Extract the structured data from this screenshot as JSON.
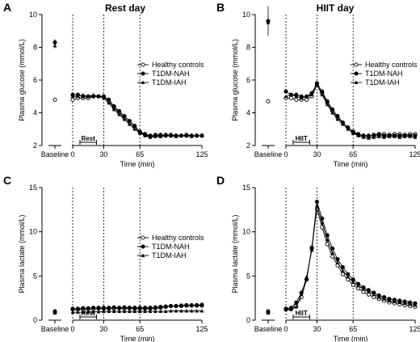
{
  "chart_data": [
    {
      "letter": "A",
      "title": "Rest day",
      "type": "line",
      "ylabel": "Plasma glucose (mmol/L)",
      "xlabel": "Time (min)",
      "ylim": [
        2,
        10
      ],
      "yticks": [
        2,
        4,
        6,
        8,
        10
      ],
      "xlim": [
        0,
        125
      ],
      "xticks": [
        0,
        30,
        65,
        125
      ],
      "vlines": [
        0,
        30,
        65
      ],
      "baseline_label": "Baseline",
      "activity_box": {
        "label": "Rest",
        "start": 7,
        "end": 23
      },
      "legend": [
        "Healthy controls",
        "T1DM-NAH",
        "T1DM-IAH"
      ],
      "baseline_points": [
        {
          "series": "Healthy controls",
          "y": 4.8
        },
        {
          "series": "T1DM-NAH",
          "y": 8.3,
          "err": 0.2
        },
        {
          "series": "T1DM-IAH",
          "y": 8.1,
          "err": 0.15
        }
      ],
      "x": [
        0,
        5,
        10,
        15,
        20,
        25,
        30,
        35,
        40,
        45,
        50,
        55,
        60,
        65,
        70,
        75,
        80,
        85,
        90,
        95,
        100,
        105,
        110,
        115,
        120,
        125
      ],
      "series": [
        {
          "name": "Healthy controls",
          "values": [
            4.8,
            4.9,
            4.9,
            4.9,
            5.0,
            5.0,
            5.0,
            4.7,
            4.3,
            4.0,
            3.7,
            3.4,
            3.1,
            2.8,
            2.65,
            2.55,
            2.6,
            2.6,
            2.65,
            2.65,
            2.6,
            2.6,
            2.65,
            2.6,
            2.6,
            2.6
          ]
        },
        {
          "name": "T1DM-NAH",
          "values": [
            5.1,
            5.1,
            5.0,
            5.0,
            5.0,
            5.0,
            5.0,
            4.8,
            4.4,
            4.1,
            3.8,
            3.5,
            3.2,
            2.85,
            2.7,
            2.6,
            2.65,
            2.65,
            2.6,
            2.6,
            2.6,
            2.6,
            2.6,
            2.6,
            2.6,
            2.6
          ]
        },
        {
          "name": "T1DM-IAH",
          "values": [
            5.0,
            5.0,
            5.1,
            5.0,
            5.1,
            5.0,
            4.9,
            4.6,
            4.2,
            3.9,
            3.6,
            3.3,
            3.0,
            2.75,
            2.6,
            2.5,
            2.55,
            2.55,
            2.6,
            2.6,
            2.55,
            2.6,
            2.6,
            2.55,
            2.6,
            2.6
          ]
        }
      ]
    },
    {
      "letter": "B",
      "title": "HIIT day",
      "type": "line",
      "ylabel": "Plasma glucose (mmol/L)",
      "xlabel": "Time (min)",
      "ylim": [
        2,
        10
      ],
      "yticks": [
        2,
        4,
        6,
        8,
        10
      ],
      "xlim": [
        0,
        125
      ],
      "xticks": [
        0,
        30,
        65,
        125
      ],
      "vlines": [
        0,
        30,
        65
      ],
      "baseline_label": "Baseline",
      "activity_box": {
        "label": "HIIT",
        "start": 7,
        "end": 23
      },
      "legend": [
        "Healthy controls",
        "T1DM-NAH",
        "T1DM-IAH"
      ],
      "baseline_points": [
        {
          "series": "Healthy controls",
          "y": 4.7
        },
        {
          "series": "T1DM-NAH",
          "y": 9.6,
          "err": 0.9
        },
        {
          "series": "T1DM-IAH",
          "y": 9.5,
          "err": 0.1
        }
      ],
      "x": [
        0,
        5,
        10,
        15,
        20,
        25,
        30,
        35,
        40,
        45,
        50,
        55,
        60,
        65,
        70,
        75,
        80,
        85,
        90,
        95,
        100,
        105,
        110,
        115,
        120,
        125
      ],
      "series": [
        {
          "name": "Healthy controls",
          "values": [
            4.9,
            4.9,
            4.8,
            4.8,
            4.8,
            5.0,
            5.7,
            5.2,
            4.6,
            4.1,
            3.7,
            3.4,
            3.1,
            2.8,
            2.65,
            2.6,
            2.55,
            2.65,
            2.7,
            2.7,
            2.65,
            2.7,
            2.7,
            2.65,
            2.7,
            2.7
          ]
        },
        {
          "name": "T1DM-NAH",
          "values": [
            5.3,
            5.1,
            5.1,
            5.0,
            5.0,
            5.2,
            5.8,
            5.3,
            4.7,
            4.2,
            3.8,
            3.4,
            3.1,
            2.85,
            2.7,
            2.6,
            2.6,
            2.6,
            2.65,
            2.6,
            2.6,
            2.6,
            2.6,
            2.6,
            2.6,
            2.6
          ]
        },
        {
          "name": "T1DM-IAH",
          "values": [
            5.0,
            5.1,
            5.0,
            4.9,
            5.0,
            5.1,
            5.7,
            5.1,
            4.5,
            4.0,
            3.6,
            3.3,
            3.0,
            2.75,
            2.6,
            2.5,
            2.45,
            2.5,
            2.55,
            2.5,
            2.55,
            2.55,
            2.5,
            2.55,
            2.55,
            2.5
          ]
        }
      ]
    },
    {
      "letter": "C",
      "title": "",
      "type": "line",
      "ylabel": "Plasma lactate (mmol/L)",
      "xlabel": "Time (min)",
      "ylim": [
        0,
        15
      ],
      "yticks": [
        0,
        5,
        10,
        15
      ],
      "xlim": [
        0,
        125
      ],
      "xticks": [
        0,
        30,
        65,
        125
      ],
      "vlines": [
        0,
        30,
        65
      ],
      "baseline_label": "Baseline",
      "activity_box": {
        "label": "Rest",
        "start": 7,
        "end": 23
      },
      "legend": [
        "Healthy controls",
        "T1DM-NAH",
        "T1DM-IAH"
      ],
      "baseline_points": [
        {
          "series": "Healthy controls",
          "y": 0.9
        },
        {
          "series": "T1DM-NAH",
          "y": 1.0
        },
        {
          "series": "T1DM-IAH",
          "y": 0.8
        }
      ],
      "x": [
        0,
        5,
        10,
        15,
        20,
        25,
        30,
        35,
        40,
        45,
        50,
        55,
        60,
        65,
        70,
        75,
        80,
        85,
        90,
        95,
        100,
        105,
        110,
        115,
        120,
        125
      ],
      "series": [
        {
          "name": "Healthy controls",
          "values": [
            1.2,
            1.2,
            1.2,
            1.25,
            1.25,
            1.3,
            1.3,
            1.3,
            1.3,
            1.35,
            1.3,
            1.35,
            1.3,
            1.3,
            1.3,
            1.3,
            1.35,
            1.4,
            1.5,
            1.6,
            1.6,
            1.65,
            1.7,
            1.7,
            1.7,
            1.75
          ]
        },
        {
          "name": "T1DM-NAH",
          "values": [
            1.3,
            1.3,
            1.35,
            1.35,
            1.4,
            1.4,
            1.4,
            1.4,
            1.45,
            1.4,
            1.45,
            1.4,
            1.4,
            1.4,
            1.4,
            1.4,
            1.45,
            1.5,
            1.55,
            1.6,
            1.6,
            1.6,
            1.65,
            1.65,
            1.65,
            1.65
          ]
        },
        {
          "name": "T1DM-IAH",
          "values": [
            0.9,
            0.9,
            0.9,
            0.95,
            0.95,
            0.95,
            1.0,
            1.0,
            1.0,
            1.0,
            1.0,
            1.0,
            1.0,
            1.0,
            1.0,
            1.0,
            1.0,
            1.0,
            1.0,
            1.05,
            1.05,
            1.05,
            1.05,
            1.05,
            1.05,
            1.05
          ]
        }
      ]
    },
    {
      "letter": "D",
      "title": "",
      "type": "line",
      "ylabel": "Plasma lactate (mmol/L)",
      "xlabel": "Time (min)",
      "ylim": [
        0,
        15
      ],
      "yticks": [
        0,
        5,
        10,
        15
      ],
      "xlim": [
        0,
        125
      ],
      "xticks": [
        0,
        30,
        65,
        125
      ],
      "vlines": [
        0,
        30,
        65
      ],
      "baseline_label": "Baseline",
      "activity_box": {
        "label": "HIIT",
        "start": 7,
        "end": 23
      },
      "legend": [],
      "baseline_points": [
        {
          "series": "Healthy controls",
          "y": 1.0
        },
        {
          "series": "T1DM-NAH",
          "y": 0.9
        },
        {
          "series": "T1DM-IAH",
          "y": 0.8
        }
      ],
      "x": [
        0,
        5,
        10,
        15,
        20,
        25,
        30,
        35,
        40,
        45,
        50,
        55,
        60,
        65,
        70,
        75,
        80,
        85,
        90,
        95,
        100,
        105,
        110,
        115,
        120,
        125
      ],
      "series": [
        {
          "name": "Healthy controls",
          "values": [
            1.2,
            1.3,
            1.6,
            2.6,
            4.6,
            8.2,
            12.6,
            10.5,
            8.6,
            7.2,
            6.2,
            5.2,
            4.6,
            4.0,
            3.6,
            3.2,
            2.9,
            2.6,
            2.4,
            2.2,
            2.0,
            1.9,
            1.8,
            1.7,
            1.6,
            1.5
          ]
        },
        {
          "name": "T1DM-NAH",
          "values": [
            1.3,
            1.4,
            2.0,
            3.1,
            4.6,
            8.1,
            13.4,
            11.5,
            9.6,
            8.1,
            6.9,
            6.0,
            5.2,
            4.6,
            4.1,
            3.7,
            3.4,
            3.1,
            2.8,
            2.6,
            2.4,
            2.3,
            2.2,
            2.1,
            2.0,
            1.9
          ]
        },
        {
          "name": "T1DM-IAH",
          "values": [
            1.2,
            1.2,
            1.5,
            2.9,
            4.9,
            7.9,
            13.0,
            11.0,
            9.1,
            7.6,
            6.5,
            5.6,
            4.9,
            4.3,
            3.9,
            3.5,
            3.2,
            2.9,
            2.6,
            2.4,
            2.2,
            2.1,
            2.0,
            1.9,
            1.8,
            1.7
          ]
        }
      ]
    }
  ]
}
